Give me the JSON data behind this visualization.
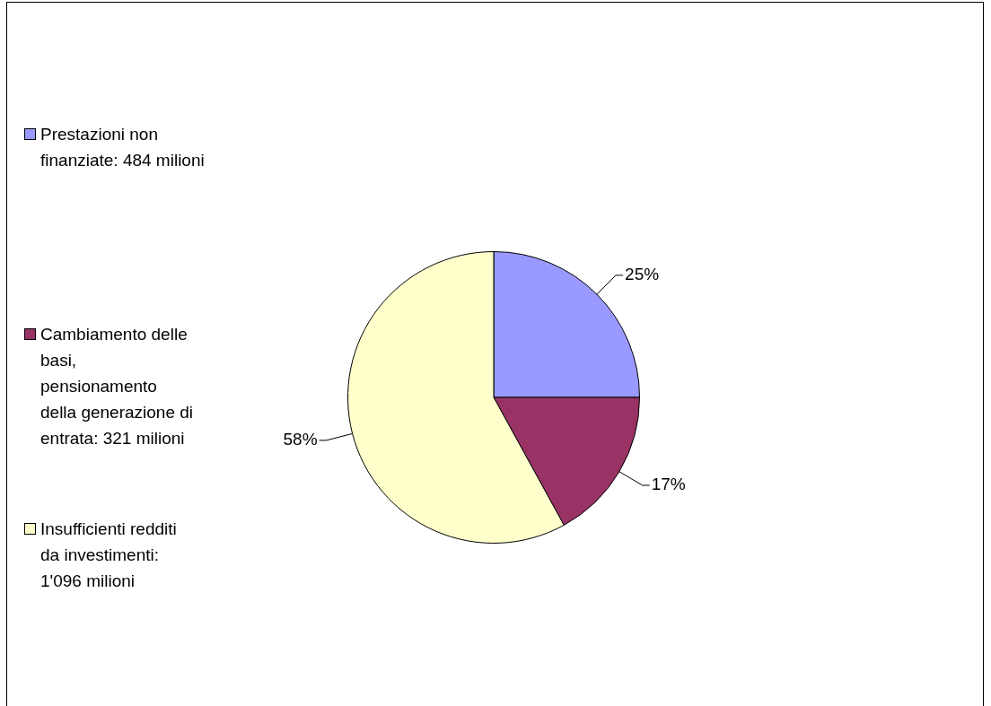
{
  "chart_data": {
    "type": "pie",
    "categories": [
      "Prestazioni non finanziate: 484 milioni",
      "Cambiamento delle basi, pensionamento della generazione di entrata: 321 milioni",
      "Insufficienti redditi da investimenti: 1'096 milioni"
    ],
    "values": [
      25,
      17,
      58
    ],
    "value_labels": [
      "25%",
      "17%",
      "58%"
    ],
    "colors": [
      "#9999ff",
      "#993366",
      "#ffffcc"
    ],
    "legend": "left"
  }
}
